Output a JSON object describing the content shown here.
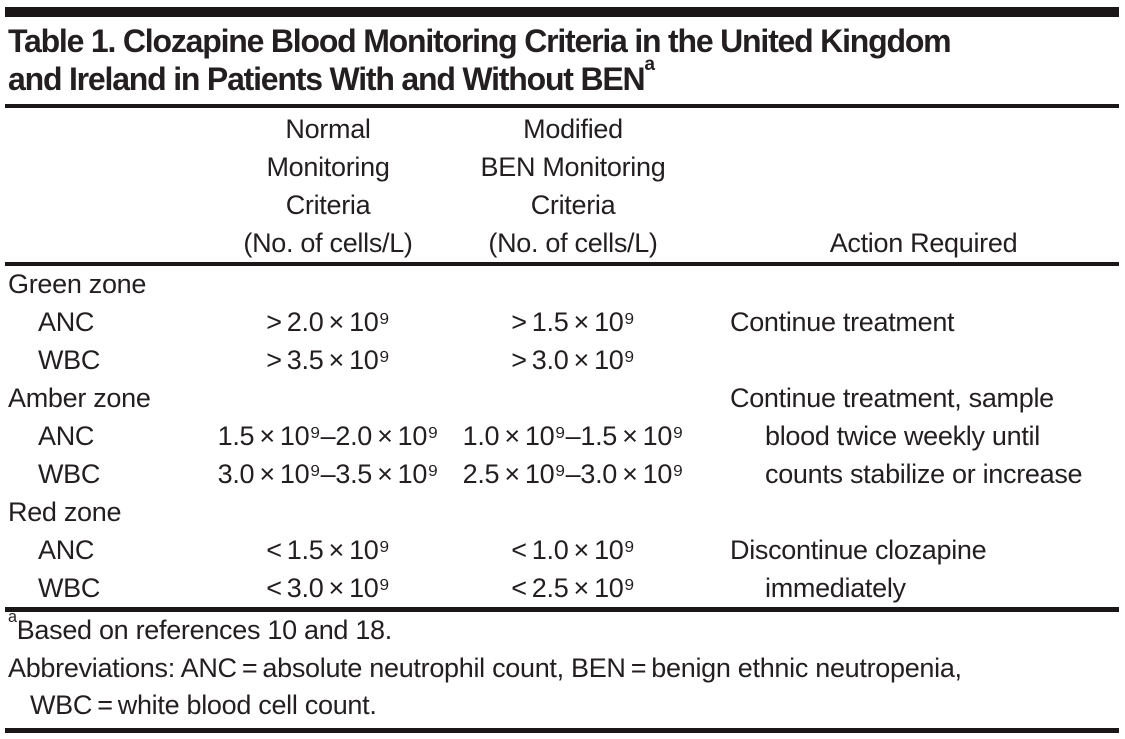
{
  "title": {
    "lines": [
      "Table 1. Clozapine Blood Monitoring Criteria in the United Kingdom",
      "and Ireland in Patients With and Without BEN"
    ],
    "footnote_marker": "a"
  },
  "header": {
    "normal": {
      "lines": [
        "Normal",
        "Monitoring",
        "Criteria",
        "(No. of cells/L)"
      ]
    },
    "modified": {
      "lines": [
        "Modified",
        "BEN Monitoring",
        "Criteria",
        "(No. of cells/L)"
      ]
    },
    "action": {
      "label": "Action Required"
    }
  },
  "rows": [
    {
      "label": "Green zone",
      "normal": "",
      "modified": "",
      "action": ""
    },
    {
      "label": "ANC",
      "normal": "> 2.0 × 10⁹",
      "modified": "> 1.5 × 10⁹",
      "action": "Continue treatment"
    },
    {
      "label": "WBC",
      "normal": "> 3.5 × 10⁹",
      "modified": "> 3.0 × 10⁹",
      "action": ""
    },
    {
      "label": "Amber zone",
      "normal": "",
      "modified": "",
      "action": "Continue treatment, sample"
    },
    {
      "label": "ANC",
      "normal": "1.5 × 10⁹–2.0 × 10⁹",
      "modified": "1.0 × 10⁹–1.5 × 10⁹",
      "action": "blood twice weekly until"
    },
    {
      "label": "WBC",
      "normal": "3.0 × 10⁹–3.5 × 10⁹",
      "modified": "2.5 × 10⁹–3.0 × 10⁹",
      "action": "counts stabilize or increase"
    },
    {
      "label": "Red zone",
      "normal": "",
      "modified": "",
      "action": ""
    },
    {
      "label": "ANC",
      "normal": "< 1.5 × 10⁹",
      "modified": "< 1.0 × 10⁹",
      "action": "Discontinue clozapine"
    },
    {
      "label": "WBC",
      "normal": "< 3.0 × 10⁹",
      "modified": "< 2.5 × 10⁹",
      "action": "immediately"
    }
  ],
  "footnotes": {
    "based_on": {
      "marker": "a",
      "text": "Based on references 10 and 18."
    },
    "abbreviations": {
      "lines": [
        "Abbreviations: ANC = absolute neutrophil count, BEN = benign ethnic neutropenia,",
        "WBC = white blood cell count."
      ]
    }
  },
  "colors": {
    "text": "#231f20",
    "rule": "#1b1718",
    "background": "#ffffff"
  }
}
